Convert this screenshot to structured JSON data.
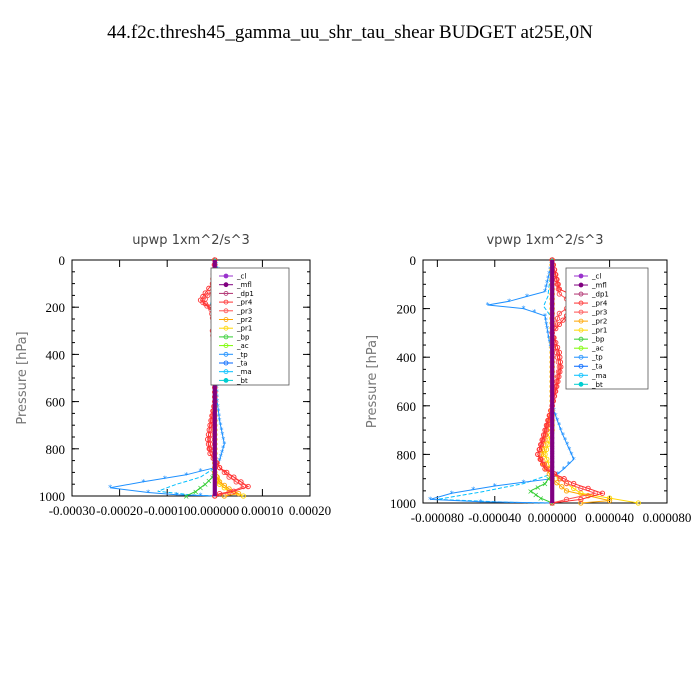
{
  "title": "44.f2c.thresh45_gamma_uu_shr_tau_shear  BUDGET at25E,0N",
  "colors": {
    "cl": "#9932cc",
    "mfl": "#800080",
    "dp1": "#b03070",
    "pr4": "#ff3030",
    "pr3": "#ff5050",
    "pr2": "#ffa500",
    "pr1": "#ffd700",
    "bp": "#32cd32",
    "ac": "#7cfc00",
    "tp": "#1e90ff",
    "ta": "#0066ff",
    "ma": "#00bfff",
    "bt": "#00ced1"
  },
  "chart_data": [
    {
      "type": "line",
      "title": "upwp   1xm^2/s^3",
      "xlabel": "",
      "ylabel": "Pressure  [hPa]",
      "xlim": [
        -0.0003,
        0.0002
      ],
      "ylim": [
        1000,
        0
      ],
      "y_inverted": true,
      "xticks": [
        -0.0003,
        -0.0002,
        -0.0001,
        0.0,
        0.0001,
        0.0002
      ],
      "xtick_labels": [
        "-0.00030",
        "-0.00020",
        "-0.00010",
        "0.000000",
        "0.00010",
        "0.00020"
      ],
      "yticks": [
        0,
        200,
        400,
        600,
        800,
        1000
      ],
      "legend": [
        "_cl",
        "_mfl",
        "_dp1",
        "_pr4",
        "_pr3",
        "_pr2",
        "_pr1",
        "_bp",
        "_ac",
        "_tp",
        "_ta",
        "_ma",
        "_bt"
      ],
      "legend_placement": "top-right",
      "series": [
        {
          "name": "_cl",
          "color_key": "cl",
          "x": [
            0,
            0,
            0,
            0,
            0,
            0
          ],
          "y": [
            0,
            200,
            400,
            600,
            800,
            1000
          ]
        },
        {
          "name": "_mfl",
          "color_key": "mfl",
          "x": [
            0,
            0,
            0,
            0,
            0,
            0
          ],
          "y": [
            0,
            200,
            400,
            600,
            800,
            1000
          ]
        },
        {
          "name": "_pr4",
          "color_key": "pr4",
          "x": [
            0,
            -5e-06,
            -2e-05,
            -3e-05,
            -1e-05,
            5e-06,
            -5e-06,
            0,
            0,
            -1e-05,
            -1.5e-05,
            -1e-05,
            1e-05,
            4e-05,
            7e-05,
            4e-05,
            1e-05,
            0
          ],
          "y": [
            0,
            100,
            140,
            170,
            200,
            230,
            300,
            400,
            600,
            700,
            760,
            820,
            880,
            920,
            960,
            980,
            990,
            1000
          ]
        },
        {
          "name": "_pr3",
          "color_key": "pr3",
          "x": [
            0,
            0,
            -1.5e-05,
            -2.5e-05,
            -8e-06,
            0,
            0,
            -8e-06,
            -1e-05,
            1e-05,
            3e-05,
            6e-05,
            3e-05,
            0
          ],
          "y": [
            0,
            120,
            150,
            180,
            210,
            300,
            600,
            720,
            800,
            880,
            920,
            960,
            985,
            1000
          ]
        },
        {
          "name": "_pr2",
          "color_key": "pr2",
          "x": [
            0,
            0,
            0,
            1e-05,
            3e-05,
            5e-05,
            2e-05
          ],
          "y": [
            0,
            600,
            900,
            940,
            970,
            990,
            1000
          ]
        },
        {
          "name": "_pr1",
          "color_key": "pr1",
          "x": [
            0,
            0,
            1e-05,
            3e-05,
            6e-05
          ],
          "y": [
            0,
            900,
            950,
            980,
            1000
          ]
        },
        {
          "name": "_bp",
          "color_key": "bp",
          "x": [
            0,
            0,
            -5e-06,
            -2e-05,
            -4e-05,
            -6e-05
          ],
          "y": [
            0,
            880,
            920,
            950,
            980,
            1000
          ]
        },
        {
          "name": "_tp",
          "color_key": "tp",
          "x": [
            0,
            2e-05,
            1.5e-05,
            0,
            0,
            5e-06,
            1e-05,
            2e-05,
            1e-05,
            0,
            -6e-05,
            -0.00015,
            -0.00022,
            -0.00014,
            -8e-05,
            -3e-05,
            0
          ],
          "y": [
            0,
            120,
            160,
            200,
            300,
            600,
            680,
            780,
            850,
            880,
            910,
            940,
            965,
            985,
            995,
            998,
            1000
          ]
        },
        {
          "name": "_ma",
          "color_key": "ma",
          "x": [
            0,
            -5e-06,
            -1e-05,
            0,
            0,
            -3e-05,
            -8e-05,
            -0.00012,
            -5e-05,
            0
          ],
          "y": [
            0,
            150,
            200,
            250,
            880,
            920,
            950,
            980,
            995,
            1000
          ]
        }
      ]
    },
    {
      "type": "line",
      "title": "vpwp   1xm^2/s^3",
      "xlabel": "",
      "ylabel": "Pressure  [hPa]",
      "xlim": [
        -9e-05,
        8e-05
      ],
      "ylim": [
        1000,
        0
      ],
      "y_inverted": true,
      "xticks": [
        -8e-05,
        -4e-05,
        0.0,
        4e-05,
        8e-05
      ],
      "xtick_labels": [
        "-0.000080",
        "-0.000040",
        "0.000000",
        "0.000040",
        "0.000080"
      ],
      "yticks": [
        0,
        200,
        400,
        600,
        800,
        1000
      ],
      "legend": [
        "_cl",
        "_mfl",
        "_dp1",
        "_pr4",
        "_pr3",
        "_pr2",
        "_pr1",
        "_bp",
        "_ac",
        "_tp",
        "_ta",
        "_ma",
        "_bt"
      ],
      "legend_placement": "top-right",
      "series": [
        {
          "name": "_cl",
          "color_key": "cl",
          "x": [
            0,
            0,
            0,
            0,
            0,
            0
          ],
          "y": [
            0,
            200,
            400,
            600,
            800,
            1000
          ]
        },
        {
          "name": "_mfl",
          "color_key": "mfl",
          "x": [
            0,
            0,
            0,
            0,
            0,
            0
          ],
          "y": [
            0,
            200,
            400,
            600,
            800,
            1000
          ]
        },
        {
          "name": "_pr4",
          "color_key": "pr4",
          "x": [
            0,
            5e-06,
            2e-05,
            2.2e-05,
            1e-05,
            0,
            5e-06,
            6e-06,
            4e-06,
            0,
            -5e-06,
            -1e-05,
            -5e-06,
            1.5e-05,
            3.5e-05,
            2e-05,
            0
          ],
          "y": [
            0,
            120,
            160,
            190,
            230,
            300,
            380,
            440,
            500,
            600,
            700,
            800,
            860,
            920,
            960,
            985,
            1000
          ]
        },
        {
          "name": "_pr3",
          "color_key": "pr3",
          "x": [
            0,
            5e-06,
            1.5e-05,
            5e-06,
            0,
            5e-06,
            0,
            -5e-06,
            -1e-05,
            -3e-06,
            1e-05,
            3e-05,
            1e-05,
            0
          ],
          "y": [
            0,
            140,
            180,
            220,
            300,
            440,
            600,
            720,
            800,
            860,
            920,
            960,
            985,
            1000
          ]
        },
        {
          "name": "_pr2",
          "color_key": "pr2",
          "x": [
            0,
            0,
            -8e-06,
            0,
            1e-05,
            4e-05,
            2e-05
          ],
          "y": [
            0,
            600,
            820,
            900,
            950,
            990,
            1000
          ]
        },
        {
          "name": "_pr1",
          "color_key": "pr1",
          "x": [
            0,
            0,
            -5e-06,
            0,
            2e-05,
            6e-05
          ],
          "y": [
            0,
            700,
            800,
            880,
            960,
            1000
          ]
        },
        {
          "name": "_bp",
          "color_key": "bp",
          "x": [
            0,
            0,
            -5e-06,
            -1.5e-05,
            -8e-06,
            0
          ],
          "y": [
            0,
            880,
            920,
            950,
            980,
            1000
          ]
        },
        {
          "name": "_tp",
          "color_key": "tp",
          "x": [
            0,
            -5e-06,
            -3e-05,
            -4.5e-05,
            -2e-05,
            -5e-06,
            -3e-06,
            0,
            0,
            6e-06,
            1.2e-05,
            1.5e-05,
            8e-06,
            0,
            -4e-05,
            -7e-05,
            -8.5e-05,
            -5e-05,
            0
          ],
          "y": [
            0,
            130,
            170,
            185,
            200,
            230,
            300,
            400,
            600,
            700,
            780,
            820,
            860,
            900,
            930,
            960,
            985,
            995,
            1000
          ]
        },
        {
          "name": "_ma",
          "color_key": "ma",
          "x": [
            0,
            -3e-06,
            -6e-06,
            0,
            0,
            -2e-05,
            -5e-05,
            -8e-05,
            -3e-05,
            0
          ],
          "y": [
            0,
            150,
            190,
            240,
            880,
            920,
            955,
            985,
            997,
            1000
          ]
        }
      ]
    }
  ]
}
